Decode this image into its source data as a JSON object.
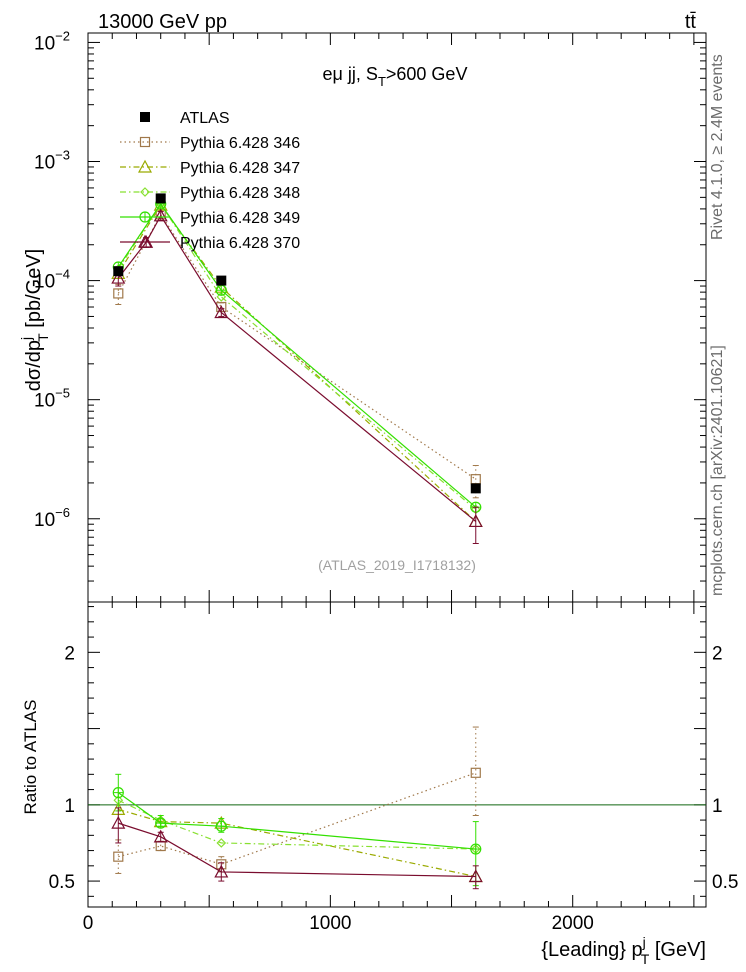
{
  "header": {
    "left": "13000 GeV pp",
    "right": "tt̄"
  },
  "side_texts": {
    "rivet": "Rivet 4.1.0, ≥ 2.4M events",
    "mcplots": "mcplots.cern.ch [arXiv:2401.10621]"
  },
  "chart_data": [
    {
      "type": "scatter",
      "panel": "main",
      "title": "eμ jj, S_T>600 GeV",
      "title_parts": {
        "main": "eμ jj, S",
        "sub": "T",
        "tail": ">600 GeV"
      },
      "ylabel": "dσ/dp_T^j [pb/GeV]",
      "ylabel_parts": {
        "main": "dσ/dp",
        "sub": "T",
        "sup": "j",
        "tail": " [pb/GeV]"
      },
      "yscale": "log",
      "ylim": [
        2e-07,
        0.012
      ],
      "xlim": [
        0,
        2550
      ],
      "y_ticks": [
        {
          "value": 1e-06,
          "base": "10",
          "exp": "−6"
        },
        {
          "value": 1e-05,
          "base": "10",
          "exp": "−5"
        },
        {
          "value": 0.0001,
          "base": "10",
          "exp": "−4"
        },
        {
          "value": 0.001,
          "base": "10",
          "exp": "−3"
        },
        {
          "value": 0.01,
          "base": "10",
          "exp": "−2"
        }
      ],
      "watermark": "(ATLAS_2019_I1718132)",
      "legend_position": "top-left",
      "series": [
        {
          "name": "ATLAS",
          "color": "#000000",
          "marker": "filled-square",
          "line": "none",
          "x": [
            125,
            300,
            550,
            1600
          ],
          "y": [
            0.00012,
            0.00049,
            0.0001,
            1.8e-06
          ]
        },
        {
          "name": "Pythia 6.428 346",
          "color": "#a0784a",
          "marker": "open-square",
          "line": "dotted",
          "x": [
            125,
            300,
            550,
            1600
          ],
          "y": [
            7.8e-05,
            0.00036,
            6e-05,
            2.15e-06
          ],
          "err_lo": [
            6.3e-05,
            0.00033,
            5.5e-05,
            1.5e-06
          ],
          "err_hi": [
            9.3e-05,
            0.00039,
            6.5e-05,
            2.8e-06
          ]
        },
        {
          "name": "Pythia 6.428 347",
          "color": "#9aaa00",
          "marker": "open-triangle",
          "line": "dashdot",
          "x": [
            125,
            300,
            550,
            1600
          ],
          "y": [
            0.000115,
            0.00043,
            8.8e-05,
            9.5e-07
          ]
        },
        {
          "name": "Pythia 6.428 348",
          "color": "#88e030",
          "marker": "open-diamond",
          "line": "dashdot",
          "x": [
            125,
            300,
            550,
            1600
          ],
          "y": [
            0.000125,
            0.00044,
            7.3e-05,
            1.2e-06
          ]
        },
        {
          "name": "Pythia 6.428 349",
          "color": "#33e000",
          "marker": "open-circle-cross",
          "line": "solid",
          "x": [
            125,
            300,
            550,
            1600
          ],
          "y": [
            0.00013,
            0.00044,
            8.3e-05,
            1.25e-06
          ]
        },
        {
          "name": "Pythia 6.428 370",
          "color": "#7a0c2e",
          "marker": "open-triangle",
          "line": "solid",
          "x": [
            125,
            240,
            300,
            550,
            1600
          ],
          "y": [
            0.000105,
            0.00021,
            0.00035,
            5.4e-05,
            9.5e-07
          ],
          "err_lo": [
            9e-05,
            0.00019,
            0.00032,
            5e-05,
            6.2e-07
          ],
          "err_hi": [
            0.00012,
            0.00023,
            0.00038,
            5.8e-05,
            1.25e-06
          ]
        }
      ]
    },
    {
      "type": "scatter",
      "panel": "ratio",
      "ylabel": "Ratio to ATLAS",
      "xlabel": "{Leading} p_T^j [GeV]",
      "xlabel_parts": {
        "main": "{Leading} p",
        "sub": "T",
        "sup": "j",
        "tail": " [GeV]"
      },
      "yscale": "linear",
      "ylim": [
        0.33,
        2.33
      ],
      "xlim": [
        0,
        2550
      ],
      "x_ticks": [
        {
          "value": 0,
          "label": "0"
        },
        {
          "value": 1000,
          "label": "1000"
        },
        {
          "value": 2000,
          "label": "2000"
        }
      ],
      "y_ticks": [
        {
          "value": 0.5,
          "label": "0.5"
        },
        {
          "value": 1,
          "label": "1"
        },
        {
          "value": 2,
          "label": "2"
        }
      ],
      "reference_line": 1,
      "reference_color": "#116611",
      "series": [
        {
          "name": "Pythia 6.428 346",
          "color": "#a0784a",
          "marker": "open-square",
          "line": "dotted",
          "x": [
            125,
            300,
            550,
            1600
          ],
          "y": [
            0.66,
            0.73,
            0.61,
            1.21
          ],
          "err_lo": [
            0.55,
            0.7,
            0.56,
            0.93
          ],
          "err_hi": [
            0.77,
            0.76,
            0.66,
            1.51
          ]
        },
        {
          "name": "Pythia 6.428 347",
          "color": "#9aaa00",
          "marker": "open-triangle",
          "line": "dashdot",
          "x": [
            125,
            300,
            550,
            1600
          ],
          "y": [
            0.97,
            0.89,
            0.88,
            0.53
          ]
        },
        {
          "name": "Pythia 6.428 348",
          "color": "#88e030",
          "marker": "open-diamond",
          "line": "dashdot",
          "x": [
            125,
            300,
            550,
            1600
          ],
          "y": [
            1.03,
            0.9,
            0.75,
            0.71
          ]
        },
        {
          "name": "Pythia 6.428 349",
          "color": "#33e000",
          "marker": "open-circle-cross",
          "line": "solid",
          "x": [
            125,
            300,
            550,
            1600
          ],
          "y": [
            1.08,
            0.88,
            0.86,
            0.71
          ],
          "err_lo": [
            0.96,
            0.86,
            0.82,
            0.47
          ],
          "err_hi": [
            1.2,
            0.93,
            0.91,
            0.89
          ]
        },
        {
          "name": "Pythia 6.428 370",
          "color": "#7a0c2e",
          "marker": "open-triangle",
          "line": "solid",
          "x": [
            125,
            300,
            550,
            1600
          ],
          "y": [
            0.88,
            0.79,
            0.56,
            0.53
          ],
          "err_lo": [
            0.75,
            0.76,
            0.5,
            0.45
          ],
          "err_hi": [
            0.98,
            0.82,
            0.62,
            0.6
          ]
        }
      ]
    }
  ]
}
